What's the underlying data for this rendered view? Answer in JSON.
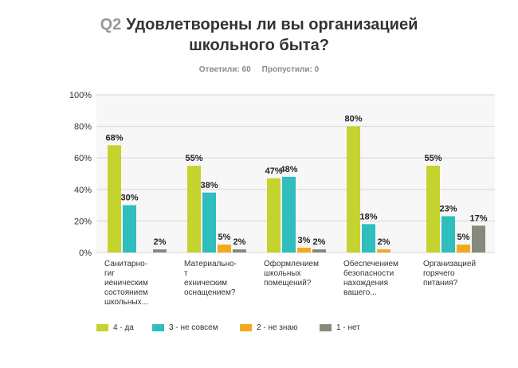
{
  "header": {
    "qnum": "Q2",
    "title_line1": "Удовлетворены ли вы организацией",
    "title_line2": "школьного быта?",
    "answered": "Ответили: 60",
    "skipped": "Пропустили: 0"
  },
  "chart_data": {
    "type": "bar",
    "categories": [
      [
        "Санитарно-",
        "гиг",
        "иеническим",
        "состоянием",
        "школьных..."
      ],
      [
        "Материально-",
        "т",
        "ехническим",
        "оснащением?"
      ],
      [
        "Оформлением",
        "школьных",
        "помещений?"
      ],
      [
        "Обеспечением",
        "безопасности",
        "нахождения",
        "вашего..."
      ],
      [
        "Организацией",
        "горячего",
        "питания?"
      ]
    ],
    "series": [
      {
        "name": "4 - да",
        "color": "#c5d32e",
        "values": [
          68,
          55,
          47,
          80,
          55
        ]
      },
      {
        "name": "3 - не совсем",
        "color": "#2fbdbd",
        "values": [
          30,
          38,
          48,
          18,
          23
        ]
      },
      {
        "name": "2 - не знаю",
        "color": "#f4a91d",
        "values": [
          0,
          5,
          3,
          2,
          5
        ]
      },
      {
        "name": "1 - нет",
        "color": "#858a7a",
        "values": [
          2,
          2,
          2,
          0,
          17
        ]
      }
    ],
    "value_labels": [
      [
        "68%",
        "30%",
        "",
        "2%"
      ],
      [
        "55%",
        "38%",
        "5%",
        "2%"
      ],
      [
        "47%",
        "48%",
        "3%",
        "2%"
      ],
      [
        "80%",
        "18%",
        "2%",
        ""
      ],
      [
        "55%",
        "23%",
        "5%",
        "17%"
      ]
    ],
    "y_ticks": [
      "0%",
      "20%",
      "40%",
      "60%",
      "80%",
      "100%"
    ],
    "ylim": [
      0,
      100
    ],
    "grid": true,
    "legend_position": "bottom"
  }
}
